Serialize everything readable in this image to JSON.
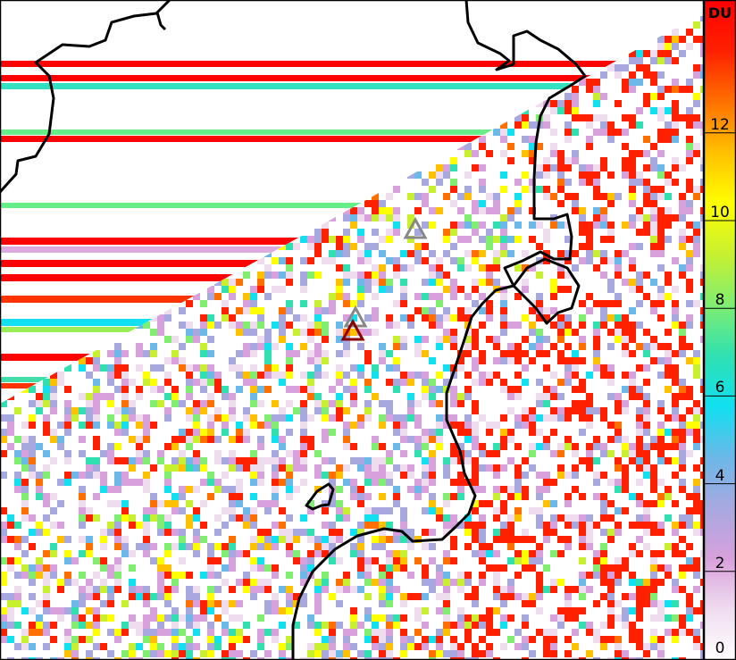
{
  "colorbar": {
    "unit_label": "DU",
    "min": 0,
    "max": 15,
    "ticks": [
      "0",
      "2",
      "4",
      "6",
      "8",
      "10",
      "12"
    ],
    "tick_values": [
      0,
      2,
      4,
      6,
      8,
      10,
      12
    ],
    "colormap": [
      "#ffffff",
      "#efdcef",
      "#d8a0dc",
      "#a8a8e0",
      "#6cb8e8",
      "#10e0f0",
      "#30e0b0",
      "#80ee70",
      "#c8f030",
      "#ffff00",
      "#ffc000",
      "#ff7000",
      "#ff2000",
      "#ff0000"
    ]
  },
  "markers": [
    {
      "type": "triangle",
      "color": "#888888"
    },
    {
      "type": "triangle",
      "color": "#888888"
    },
    {
      "type": "triangle",
      "color": "#8b0000"
    }
  ],
  "colors": {
    "coastline": "#000000",
    "frame": "#000000"
  }
}
